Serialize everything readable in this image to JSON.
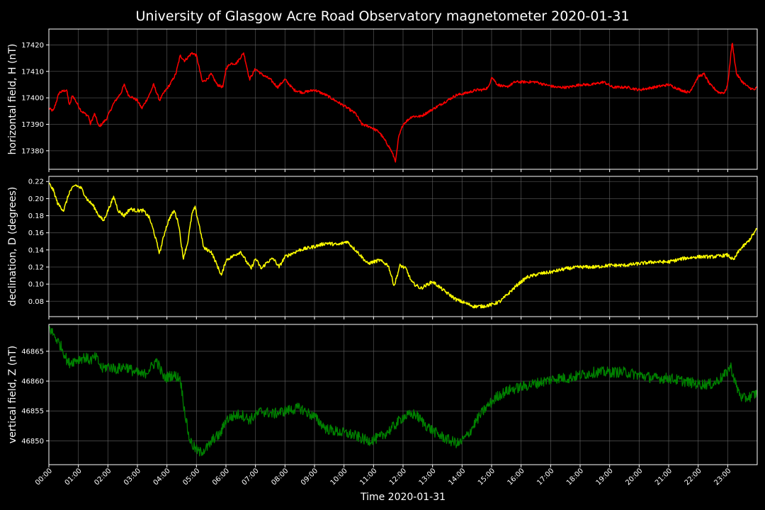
{
  "chart_data": {
    "type": "line",
    "title": "University of Glasgow Acre Road Observatory magnetometer 2020-01-31",
    "xlabel": "Time 2020-01-31",
    "x_ticks": [
      "00:00",
      "01:00",
      "02:00",
      "03:00",
      "04:00",
      "05:00",
      "06:00",
      "07:00",
      "08:00",
      "09:00",
      "10:00",
      "11:00",
      "12:00",
      "13:00",
      "14:00",
      "15:00",
      "16:00",
      "17:00",
      "18:00",
      "19:00",
      "20:00",
      "21:00",
      "22:00",
      "23:00"
    ],
    "xlim_hours": [
      0,
      24
    ],
    "grid": true,
    "panels": [
      {
        "id": "H",
        "ylabel": "horizontal field, H (nT)",
        "color": "#ff0000",
        "ylim": [
          17373,
          17426
        ],
        "y_ticks": [
          17380,
          17390,
          17400,
          17410,
          17420
        ],
        "tick_decimals": 0,
        "noise": 0.5,
        "points": [
          [
            0,
            17396
          ],
          [
            0.15,
            17395
          ],
          [
            0.35,
            17402
          ],
          [
            0.6,
            17403
          ],
          [
            0.7,
            17397
          ],
          [
            0.8,
            17401
          ],
          [
            0.95,
            17398
          ],
          [
            1.1,
            17395
          ],
          [
            1.35,
            17393
          ],
          [
            1.4,
            17390
          ],
          [
            1.55,
            17394
          ],
          [
            1.7,
            17389
          ],
          [
            1.95,
            17392
          ],
          [
            2.2,
            17398
          ],
          [
            2.45,
            17402
          ],
          [
            2.55,
            17405
          ],
          [
            2.7,
            17401
          ],
          [
            3.0,
            17399
          ],
          [
            3.15,
            17396
          ],
          [
            3.4,
            17401
          ],
          [
            3.55,
            17405
          ],
          [
            3.75,
            17399
          ],
          [
            3.9,
            17402
          ],
          [
            4.1,
            17405
          ],
          [
            4.3,
            17409
          ],
          [
            4.45,
            17416
          ],
          [
            4.6,
            17414
          ],
          [
            4.85,
            17417
          ],
          [
            5.0,
            17416
          ],
          [
            5.2,
            17406
          ],
          [
            5.35,
            17407
          ],
          [
            5.5,
            17409
          ],
          [
            5.7,
            17405
          ],
          [
            5.9,
            17404
          ],
          [
            6.0,
            17411
          ],
          [
            6.15,
            17413
          ],
          [
            6.35,
            17413
          ],
          [
            6.6,
            17417
          ],
          [
            6.8,
            17407
          ],
          [
            7.0,
            17411
          ],
          [
            7.2,
            17409
          ],
          [
            7.5,
            17407
          ],
          [
            7.75,
            17404
          ],
          [
            8.0,
            17407
          ],
          [
            8.3,
            17403
          ],
          [
            8.6,
            17402
          ],
          [
            9.0,
            17403
          ],
          [
            9.4,
            17401
          ],
          [
            10.0,
            17397
          ],
          [
            10.4,
            17394
          ],
          [
            10.6,
            17390
          ],
          [
            10.9,
            17389
          ],
          [
            11.2,
            17387
          ],
          [
            11.5,
            17382
          ],
          [
            11.6,
            17380
          ],
          [
            11.75,
            17376
          ],
          [
            11.85,
            17385
          ],
          [
            12.0,
            17390
          ],
          [
            12.3,
            17393
          ],
          [
            12.6,
            17393
          ],
          [
            12.9,
            17395
          ],
          [
            13.2,
            17397
          ],
          [
            13.5,
            17399
          ],
          [
            13.8,
            17401
          ],
          [
            14.2,
            17402
          ],
          [
            14.5,
            17403
          ],
          [
            14.7,
            17403
          ],
          [
            14.9,
            17404
          ],
          [
            15.0,
            17408
          ],
          [
            15.2,
            17405
          ],
          [
            15.5,
            17404
          ],
          [
            15.8,
            17406
          ],
          [
            16.2,
            17406
          ],
          [
            16.5,
            17406
          ],
          [
            16.8,
            17405
          ],
          [
            17.2,
            17404
          ],
          [
            17.6,
            17404
          ],
          [
            18.0,
            17405
          ],
          [
            18.4,
            17405
          ],
          [
            18.8,
            17406
          ],
          [
            19.1,
            17404
          ],
          [
            19.6,
            17404
          ],
          [
            20.0,
            17403
          ],
          [
            20.5,
            17404
          ],
          [
            21.0,
            17405
          ],
          [
            21.4,
            17403
          ],
          [
            21.7,
            17402
          ],
          [
            22.0,
            17408
          ],
          [
            22.2,
            17409
          ],
          [
            22.4,
            17405
          ],
          [
            22.7,
            17402
          ],
          [
            22.9,
            17402
          ],
          [
            23.0,
            17405
          ],
          [
            23.15,
            17421
          ],
          [
            23.3,
            17409
          ],
          [
            23.5,
            17406
          ],
          [
            23.7,
            17404
          ],
          [
            23.9,
            17403
          ],
          [
            24.0,
            17404
          ]
        ]
      },
      {
        "id": "D",
        "ylabel": "declination, D (degrees)",
        "color": "#ffff00",
        "ylim": [
          0.062,
          0.226
        ],
        "y_ticks": [
          0.08,
          0.1,
          0.12,
          0.14,
          0.16,
          0.18,
          0.2,
          0.22
        ],
        "tick_decimals": 2,
        "noise": 0.002,
        "points": [
          [
            0,
            0.218
          ],
          [
            0.15,
            0.21
          ],
          [
            0.3,
            0.194
          ],
          [
            0.5,
            0.186
          ],
          [
            0.7,
            0.208
          ],
          [
            0.9,
            0.216
          ],
          [
            1.1,
            0.212
          ],
          [
            1.3,
            0.199
          ],
          [
            1.5,
            0.192
          ],
          [
            1.7,
            0.18
          ],
          [
            1.85,
            0.174
          ],
          [
            2.0,
            0.186
          ],
          [
            2.2,
            0.202
          ],
          [
            2.35,
            0.186
          ],
          [
            2.55,
            0.18
          ],
          [
            2.75,
            0.188
          ],
          [
            2.95,
            0.186
          ],
          [
            3.2,
            0.186
          ],
          [
            3.4,
            0.178
          ],
          [
            3.55,
            0.162
          ],
          [
            3.75,
            0.136
          ],
          [
            3.95,
            0.164
          ],
          [
            4.1,
            0.178
          ],
          [
            4.25,
            0.186
          ],
          [
            4.4,
            0.17
          ],
          [
            4.55,
            0.13
          ],
          [
            4.7,
            0.148
          ],
          [
            4.85,
            0.182
          ],
          [
            4.95,
            0.19
          ],
          [
            5.1,
            0.168
          ],
          [
            5.25,
            0.142
          ],
          [
            5.5,
            0.138
          ],
          [
            5.75,
            0.118
          ],
          [
            5.85,
            0.11
          ],
          [
            6.0,
            0.128
          ],
          [
            6.2,
            0.132
          ],
          [
            6.5,
            0.138
          ],
          [
            6.7,
            0.126
          ],
          [
            6.85,
            0.118
          ],
          [
            7.0,
            0.13
          ],
          [
            7.2,
            0.118
          ],
          [
            7.4,
            0.126
          ],
          [
            7.6,
            0.13
          ],
          [
            7.8,
            0.12
          ],
          [
            8.0,
            0.132
          ],
          [
            8.5,
            0.14
          ],
          [
            9.0,
            0.144
          ],
          [
            9.4,
            0.148
          ],
          [
            9.8,
            0.146
          ],
          [
            10.1,
            0.15
          ],
          [
            10.5,
            0.136
          ],
          [
            10.8,
            0.124
          ],
          [
            11.2,
            0.128
          ],
          [
            11.5,
            0.122
          ],
          [
            11.7,
            0.098
          ],
          [
            11.9,
            0.122
          ],
          [
            12.1,
            0.118
          ],
          [
            12.3,
            0.102
          ],
          [
            12.6,
            0.095
          ],
          [
            13.0,
            0.103
          ],
          [
            13.4,
            0.092
          ],
          [
            13.8,
            0.082
          ],
          [
            14.1,
            0.078
          ],
          [
            14.4,
            0.074
          ],
          [
            14.7,
            0.074
          ],
          [
            15.0,
            0.076
          ],
          [
            15.3,
            0.08
          ],
          [
            15.6,
            0.09
          ],
          [
            15.9,
            0.1
          ],
          [
            16.2,
            0.108
          ],
          [
            16.6,
            0.112
          ],
          [
            17.0,
            0.114
          ],
          [
            17.5,
            0.118
          ],
          [
            18.0,
            0.12
          ],
          [
            18.5,
            0.12
          ],
          [
            19.0,
            0.122
          ],
          [
            19.5,
            0.122
          ],
          [
            20.0,
            0.124
          ],
          [
            20.5,
            0.126
          ],
          [
            21.0,
            0.126
          ],
          [
            21.5,
            0.13
          ],
          [
            22.0,
            0.132
          ],
          [
            22.5,
            0.132
          ],
          [
            23.0,
            0.134
          ],
          [
            23.2,
            0.128
          ],
          [
            23.4,
            0.14
          ],
          [
            23.7,
            0.15
          ],
          [
            24.0,
            0.165
          ]
        ]
      },
      {
        "id": "Z",
        "ylabel": "vertical field, Z (nT)",
        "color": "#008000",
        "ylim": [
          46846,
          46869.5
        ],
        "y_ticks": [
          46850,
          46855,
          46860,
          46865
        ],
        "tick_decimals": 0,
        "noise": 0.9,
        "points": [
          [
            0,
            46869
          ],
          [
            0.2,
            46867.5
          ],
          [
            0.45,
            46865.5
          ],
          [
            0.65,
            46863
          ],
          [
            0.9,
            46863.5
          ],
          [
            1.2,
            46864
          ],
          [
            1.4,
            46863.5
          ],
          [
            1.6,
            46864
          ],
          [
            1.8,
            46862
          ],
          [
            2.0,
            46862.5
          ],
          [
            2.3,
            46862
          ],
          [
            2.6,
            46862.5
          ],
          [
            2.9,
            46861.5
          ],
          [
            3.2,
            46861
          ],
          [
            3.5,
            46862.5
          ],
          [
            3.65,
            46863.5
          ],
          [
            3.9,
            46860.5
          ],
          [
            4.2,
            46861
          ],
          [
            4.45,
            46860.5
          ],
          [
            4.6,
            46855
          ],
          [
            4.75,
            46850.5
          ],
          [
            4.9,
            46849
          ],
          [
            5.1,
            46848
          ],
          [
            5.4,
            46849
          ],
          [
            5.6,
            46850.5
          ],
          [
            5.8,
            46851
          ],
          [
            6.0,
            46853.5
          ],
          [
            6.2,
            46854
          ],
          [
            6.5,
            46854.5
          ],
          [
            6.8,
            46853.5
          ],
          [
            7.2,
            46855
          ],
          [
            7.6,
            46854.5
          ],
          [
            8.0,
            46855
          ],
          [
            8.5,
            46855.5
          ],
          [
            9.0,
            46854
          ],
          [
            9.4,
            46852
          ],
          [
            9.8,
            46851.5
          ],
          [
            10.3,
            46851
          ],
          [
            10.8,
            46850
          ],
          [
            11.2,
            46850.5
          ],
          [
            11.6,
            46852
          ],
          [
            12.0,
            46854
          ],
          [
            12.4,
            46854.5
          ],
          [
            12.8,
            46852.5
          ],
          [
            13.2,
            46851
          ],
          [
            13.6,
            46850
          ],
          [
            13.9,
            46849.5
          ],
          [
            14.2,
            46851
          ],
          [
            14.5,
            46853.5
          ],
          [
            14.8,
            46855.5
          ],
          [
            15.2,
            46857.5
          ],
          [
            15.6,
            46858.5
          ],
          [
            16.0,
            46859
          ],
          [
            16.4,
            46859.5
          ],
          [
            16.8,
            46860
          ],
          [
            17.2,
            46860.5
          ],
          [
            17.6,
            46860.5
          ],
          [
            18.0,
            46861
          ],
          [
            18.5,
            46861.5
          ],
          [
            19.0,
            46861.5
          ],
          [
            19.5,
            46861.5
          ],
          [
            20.0,
            46861
          ],
          [
            20.5,
            46860.5
          ],
          [
            21.0,
            46860.5
          ],
          [
            21.5,
            46860
          ],
          [
            22.0,
            46859.5
          ],
          [
            22.5,
            46859.5
          ],
          [
            22.9,
            46861
          ],
          [
            23.1,
            46862.5
          ],
          [
            23.3,
            46859
          ],
          [
            23.5,
            46857
          ],
          [
            23.8,
            46857.5
          ],
          [
            24.0,
            46858
          ]
        ]
      }
    ]
  }
}
